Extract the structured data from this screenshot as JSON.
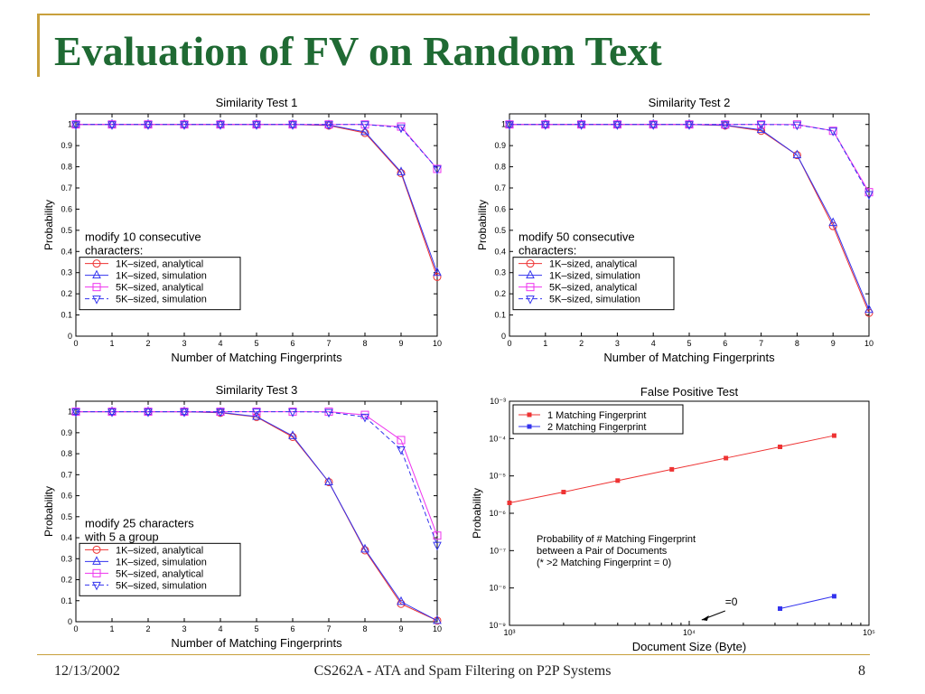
{
  "slide": {
    "title": "Evaluation of FV on Random Text",
    "footer_date": "12/13/2002",
    "footer_center": "CS262A - ATA and Spam Filtering on P2P Systems",
    "page_number": "8"
  },
  "colors": {
    "title": "#1f6a33",
    "accent": "#c8a03c",
    "red": "#ee3333",
    "blue": "#3333ee",
    "magenta": "#ee33ee"
  },
  "chart_data": [
    {
      "type": "line",
      "title": "Similarity Test 1",
      "xlabel": "Number of Matching Fingerprints",
      "ylabel": "Probability",
      "xlim": [
        0,
        10
      ],
      "ylim": [
        0,
        1.05
      ],
      "xticks": [
        "0",
        "1",
        "2",
        "3",
        "4",
        "5",
        "6",
        "7",
        "8",
        "9",
        "10"
      ],
      "yticks": [
        "0",
        "0.1",
        "0.2",
        "0.3",
        "0.4",
        "0.5",
        "0.6",
        "0.7",
        "0.8",
        "0.9",
        "1"
      ],
      "annotation": [
        "modify 10 consecutive",
        "characters:"
      ],
      "x": [
        0,
        1,
        2,
        3,
        4,
        5,
        6,
        7,
        8,
        9,
        10
      ],
      "series": [
        {
          "name": "1K–sized, analytical",
          "values": [
            1,
            1,
            1,
            1,
            1,
            1,
            1,
            0.995,
            0.96,
            0.77,
            0.28
          ]
        },
        {
          "name": "1K–sized, simulation",
          "values": [
            1,
            1,
            1,
            1,
            1,
            1,
            1,
            0.997,
            0.965,
            0.775,
            0.3
          ]
        },
        {
          "name": "5K–sized, analytical",
          "values": [
            1,
            1,
            1,
            1,
            1,
            1,
            1,
            1,
            1,
            0.99,
            0.79
          ]
        },
        {
          "name": "5K–sized, simulation",
          "values": [
            1,
            1,
            1,
            1,
            1,
            1,
            1,
            1,
            1,
            0.985,
            0.79
          ]
        }
      ]
    },
    {
      "type": "line",
      "title": "Similarity Test 2",
      "xlabel": "Number of Matching Fingerprints",
      "ylabel": "Probability",
      "xlim": [
        0,
        10
      ],
      "ylim": [
        0,
        1.05
      ],
      "xticks": [
        "0",
        "1",
        "2",
        "3",
        "4",
        "5",
        "6",
        "7",
        "8",
        "9",
        "10"
      ],
      "yticks": [
        "0",
        "0.1",
        "0.2",
        "0.3",
        "0.4",
        "0.5",
        "0.6",
        "0.7",
        "0.8",
        "0.9",
        "1"
      ],
      "annotation": [
        "modify 50 consecutive",
        "characters:"
      ],
      "x": [
        0,
        1,
        2,
        3,
        4,
        5,
        6,
        7,
        8,
        9,
        10
      ],
      "series": [
        {
          "name": "1K–sized, analytical",
          "values": [
            1,
            1,
            1,
            1,
            1,
            1,
            0.995,
            0.97,
            0.855,
            0.52,
            0.11
          ]
        },
        {
          "name": "1K–sized, simulation",
          "values": [
            1,
            1,
            1,
            1,
            1,
            1,
            0.996,
            0.975,
            0.855,
            0.535,
            0.125
          ]
        },
        {
          "name": "5K–sized, analytical",
          "values": [
            1,
            1,
            1,
            1,
            1,
            1,
            1,
            1,
            1,
            0.97,
            0.68
          ]
        },
        {
          "name": "5K–sized, simulation",
          "values": [
            1,
            1,
            1,
            1,
            1,
            1,
            1,
            1,
            0.998,
            0.97,
            0.67
          ]
        }
      ]
    },
    {
      "type": "line",
      "title": "Similarity Test 3",
      "xlabel": "Number of Matching Fingerprints",
      "ylabel": "Probability",
      "xlim": [
        0,
        10
      ],
      "ylim": [
        0,
        1.05
      ],
      "xticks": [
        "0",
        "1",
        "2",
        "3",
        "4",
        "5",
        "6",
        "7",
        "8",
        "9",
        "10"
      ],
      "yticks": [
        "0",
        "0.1",
        "0.2",
        "0.3",
        "0.4",
        "0.5",
        "0.6",
        "0.7",
        "0.8",
        "0.9",
        "1"
      ],
      "annotation": [
        "modify 25 characters",
        "with 5 a group"
      ],
      "x": [
        0,
        1,
        2,
        3,
        4,
        5,
        6,
        7,
        8,
        9,
        10
      ],
      "series": [
        {
          "name": "1K–sized, analytical",
          "values": [
            1,
            1,
            1,
            1,
            0.995,
            0.975,
            0.88,
            0.665,
            0.34,
            0.085,
            0.005
          ]
        },
        {
          "name": "1K–sized, simulation",
          "values": [
            1,
            1,
            1,
            1,
            0.997,
            0.977,
            0.885,
            0.665,
            0.345,
            0.095,
            0.005
          ]
        },
        {
          "name": "5K–sized, analytical",
          "values": [
            1,
            1,
            1,
            1,
            1,
            1,
            1,
            1,
            0.985,
            0.865,
            0.41
          ]
        },
        {
          "name": "5K–sized, simulation",
          "values": [
            1,
            1,
            1,
            1,
            1,
            1,
            1,
            0.998,
            0.975,
            0.82,
            0.365
          ]
        }
      ]
    },
    {
      "type": "line",
      "title": "False Positive Test",
      "xlabel": "Document Size (Byte)",
      "ylabel": "Probability",
      "xscale": "log",
      "yscale": "log",
      "xlim": [
        1000,
        100000
      ],
      "ylim": [
        1e-09,
        0.001
      ],
      "xticks": [
        "10³",
        "10⁴",
        "10⁵"
      ],
      "yticks": [
        "10⁻⁹",
        "10⁻⁸",
        "10⁻⁷",
        "10⁻⁶",
        "10⁻⁵",
        "10⁻⁴",
        "10⁻³"
      ],
      "annotation": [
        "Probability of # Matching Fingerprint",
        "between a Pair of Documents",
        "(* >2 Matching Fingerprint = 0)"
      ],
      "arrow_label": "=0",
      "series": [
        {
          "name": "1 Matching Fingerprint",
          "x": [
            1000,
            2000,
            4000,
            8000,
            16000,
            32000,
            64000
          ],
          "values": [
            1.9e-06,
            3.7e-06,
            7.5e-06,
            1.5e-05,
            3e-05,
            6e-05,
            0.00012
          ]
        },
        {
          "name": "2 Matching Fingerprint",
          "x": [
            32000,
            64000
          ],
          "values": [
            2.8e-09,
            6e-09
          ]
        }
      ]
    }
  ]
}
